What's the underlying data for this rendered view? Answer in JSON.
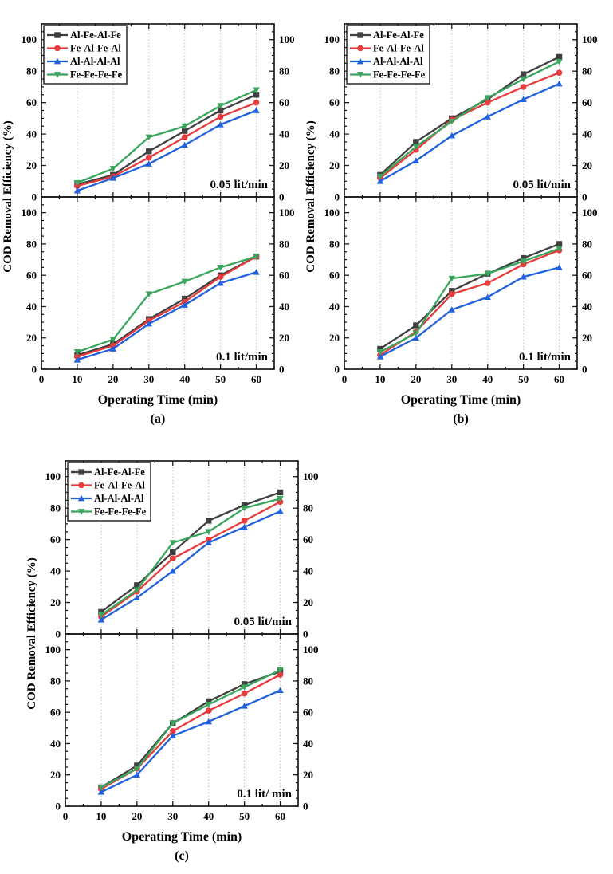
{
  "figure": {
    "background": "#ffffff",
    "frame_color": "#1a1a1a",
    "grid_color": "#aaaaaa",
    "tick_label_ticks": [
      0,
      20,
      40,
      60,
      80,
      100
    ]
  },
  "chart_data": [
    {
      "type": "line",
      "sublabel": "(a)",
      "xlabel": "Operating Time (min)",
      "ylabel": "COD Removal Efficiency (%)",
      "x": [
        10,
        20,
        30,
        40,
        50,
        60
      ],
      "xlim": [
        0,
        65
      ],
      "xticks": [
        0,
        10,
        20,
        30,
        40,
        50,
        60
      ],
      "ylim": [
        0,
        110
      ],
      "yticks": [
        0,
        20,
        40,
        60,
        80,
        100
      ],
      "grid": "vertical-dotted",
      "legend_position": "top-left",
      "legend_entries": [
        "Al-Fe-Al-Fe",
        "Fe-Al-Fe-Al",
        "Al-Al-Al-Al",
        "Fe-Fe-Fe-Fe"
      ],
      "panels": [
        {
          "annotation": "0.05 lit/min",
          "series": [
            {
              "name": "Al-Fe-Al-Fe",
              "color": "#404040",
              "marker": "square",
              "values": [
                8,
                14,
                29,
                42,
                55,
                65
              ]
            },
            {
              "name": "Fe-Al-Fe-Al",
              "color": "#e73b3d",
              "marker": "circle",
              "values": [
                7,
                13,
                25,
                38,
                51,
                60
              ]
            },
            {
              "name": "Al-Al-Al-Al",
              "color": "#2161dd",
              "marker": "triangle-up",
              "values": [
                4,
                12,
                21,
                33,
                46,
                55
              ]
            },
            {
              "name": "Fe-Fe-Fe-Fe",
              "color": "#3aa55d",
              "marker": "triangle-down",
              "values": [
                9,
                18,
                38,
                45,
                58,
                68
              ]
            }
          ]
        },
        {
          "annotation": "0.1 lit/min",
          "series": [
            {
              "name": "Al-Fe-Al-Fe",
              "color": "#404040",
              "marker": "square",
              "values": [
                9,
                16,
                32,
                45,
                60,
                72
              ]
            },
            {
              "name": "Fe-Al-Fe-Al",
              "color": "#e73b3d",
              "marker": "circle",
              "values": [
                8,
                15,
                31,
                43,
                59,
                72
              ]
            },
            {
              "name": "Al-Al-Al-Al",
              "color": "#2161dd",
              "marker": "triangle-up",
              "values": [
                6,
                13,
                29,
                41,
                55,
                62
              ]
            },
            {
              "name": "Fe-Fe-Fe-Fe",
              "color": "#3aa55d",
              "marker": "triangle-down",
              "values": [
                11,
                19,
                48,
                56,
                65,
                72
              ]
            }
          ]
        }
      ]
    },
    {
      "type": "line",
      "sublabel": "(b)",
      "xlabel": "Operating Time (min)",
      "ylabel": "COD Removal Efficiency (%)",
      "x": [
        10,
        20,
        30,
        40,
        50,
        60
      ],
      "xlim": [
        0,
        65
      ],
      "xticks": [
        0,
        10,
        20,
        30,
        40,
        50,
        60
      ],
      "ylim": [
        0,
        110
      ],
      "yticks": [
        0,
        20,
        40,
        60,
        80,
        100
      ],
      "grid": "vertical-dotted",
      "legend_position": "top-left",
      "legend_entries": [
        "Al-Fe-Al-Fe",
        "Fe-Al-Fe-Al",
        "Al-Al-Al-Al",
        "Fe-Fe-Fe-Fe"
      ],
      "panels": [
        {
          "annotation": "0.05 lit/min",
          "series": [
            {
              "name": "Al-Fe-Al-Fe",
              "color": "#404040",
              "marker": "square",
              "values": [
                14,
                35,
                50,
                62,
                78,
                89
              ]
            },
            {
              "name": "Fe-Al-Fe-Al",
              "color": "#e73b3d",
              "marker": "circle",
              "values": [
                12,
                30,
                49,
                60,
                70,
                79
              ]
            },
            {
              "name": "Al-Al-Al-Al",
              "color": "#2161dd",
              "marker": "triangle-up",
              "values": [
                10,
                23,
                39,
                51,
                62,
                72
              ]
            },
            {
              "name": "Fe-Fe-Fe-Fe",
              "color": "#3aa55d",
              "marker": "triangle-down",
              "values": [
                13,
                32,
                48,
                63,
                75,
                86
              ]
            }
          ]
        },
        {
          "annotation": "0.1 lit/min",
          "series": [
            {
              "name": "Al-Fe-Al-Fe",
              "color": "#404040",
              "marker": "square",
              "values": [
                13,
                28,
                50,
                61,
                71,
                80
              ]
            },
            {
              "name": "Fe-Al-Fe-Al",
              "color": "#e73b3d",
              "marker": "circle",
              "values": [
                9,
                24,
                48,
                55,
                67,
                76
              ]
            },
            {
              "name": "Al-Al-Al-Al",
              "color": "#2161dd",
              "marker": "triangle-up",
              "values": [
                8,
                20,
                38,
                46,
                59,
                65
              ]
            },
            {
              "name": "Fe-Fe-Fe-Fe",
              "color": "#3aa55d",
              "marker": "triangle-down",
              "values": [
                11,
                23,
                58,
                61,
                69,
                77
              ]
            }
          ]
        }
      ]
    },
    {
      "type": "line",
      "sublabel": "(c)",
      "xlabel": "Operating Time (min)",
      "ylabel": "COD Removal Efficiency (%)",
      "x": [
        10,
        20,
        30,
        40,
        50,
        60
      ],
      "xlim": [
        0,
        65
      ],
      "xticks": [
        0,
        10,
        20,
        30,
        40,
        50,
        60
      ],
      "ylim": [
        0,
        110
      ],
      "yticks": [
        0,
        20,
        40,
        60,
        80,
        100
      ],
      "grid": "vertical-dotted",
      "legend_position": "top-left",
      "legend_entries": [
        "Al-Fe-Al-Fe",
        "Fe-Al-Fe-Al",
        "Al-Al-Al-Al",
        "Fe-Fe-Fe-Fe"
      ],
      "panels": [
        {
          "annotation": "0.05 lit/min",
          "series": [
            {
              "name": "Al-Fe-Al-Fe",
              "color": "#404040",
              "marker": "square",
              "values": [
                14,
                31,
                52,
                72,
                82,
                90
              ]
            },
            {
              "name": "Fe-Al-Fe-Al",
              "color": "#e73b3d",
              "marker": "circle",
              "values": [
                11,
                27,
                48,
                60,
                72,
                84
              ]
            },
            {
              "name": "Al-Al-Al-Al",
              "color": "#2161dd",
              "marker": "triangle-up",
              "values": [
                9,
                23,
                40,
                58,
                68,
                78
              ]
            },
            {
              "name": "Fe-Fe-Fe-Fe",
              "color": "#3aa55d",
              "marker": "triangle-down",
              "values": [
                12,
                28,
                58,
                65,
                80,
                86
              ]
            }
          ]
        },
        {
          "annotation": "0.1 lit/ min",
          "series": [
            {
              "name": "Al-Fe-Al-Fe",
              "color": "#404040",
              "marker": "square",
              "values": [
                12,
                26,
                53,
                67,
                78,
                86
              ]
            },
            {
              "name": "Fe-Al-Fe-Al",
              "color": "#e73b3d",
              "marker": "circle",
              "values": [
                11,
                24,
                48,
                61,
                72,
                84
              ]
            },
            {
              "name": "Al-Al-Al-Al",
              "color": "#2161dd",
              "marker": "triangle-up",
              "values": [
                9,
                20,
                45,
                54,
                64,
                74
              ]
            },
            {
              "name": "Fe-Fe-Fe-Fe",
              "color": "#3aa55d",
              "marker": "triangle-down",
              "values": [
                12,
                24,
                53,
                65,
                76,
                87
              ]
            }
          ]
        }
      ]
    }
  ]
}
